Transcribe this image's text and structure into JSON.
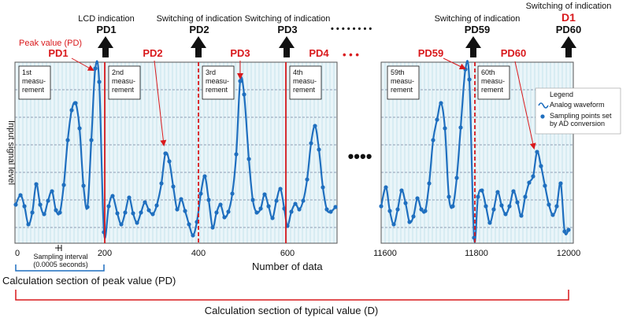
{
  "panel1": {
    "measurements": [
      "1st|measu-|rement",
      "2nd|measu-|rement",
      "3rd|measu-|rement",
      "4th|measu-|rement"
    ],
    "pd_labels": [
      "PD1",
      "PD2",
      "PD3",
      "PD4"
    ],
    "x_ticks": [
      "0",
      "200",
      "400",
      "600"
    ],
    "dots": "• • •"
  },
  "panel2": {
    "measurements": [
      "59th|measu-|rement",
      "60th|measu-|rement"
    ],
    "pd_labels": [
      "PD59",
      "PD60"
    ],
    "x_ticks": [
      "11600",
      "11800",
      "12000"
    ]
  },
  "arrows": [
    {
      "caption": "LCD indication",
      "label": "PD1"
    },
    {
      "caption": "Switching of indication",
      "label": "PD2"
    },
    {
      "caption": "Switching of indication",
      "label": "PD3"
    },
    {
      "caption": "Switching of indication",
      "label": "PD59"
    },
    {
      "caption": "Switching of indication",
      "label": "PD60",
      "extra_label": "D1"
    }
  ],
  "top_dots": "• • • • • • • •",
  "peak_value_label": "Peak value (PD)",
  "y_axis_label": "Input signal level",
  "x_axis_label": "Number of data",
  "sampling_interval": [
    "Sampling interval",
    "(0.0005 seconds)"
  ],
  "legend": {
    "title": "Legend",
    "items": [
      {
        "icon": "wave-icon",
        "text": "Analog waveform"
      },
      {
        "icon": "dot-icon",
        "text": "Sampling points set|by AD conversion"
      }
    ]
  },
  "ellipsis_big": "••••",
  "peak_section_label": "Calculation section of peak value (PD)",
  "typical_section_label": "Calculation section of typical value (D)",
  "colors": {
    "wave": "#1f6fbf",
    "red": "#d9191c",
    "grid_bg": "#eaf5f9",
    "grid_line": "#9fcfe0"
  }
}
